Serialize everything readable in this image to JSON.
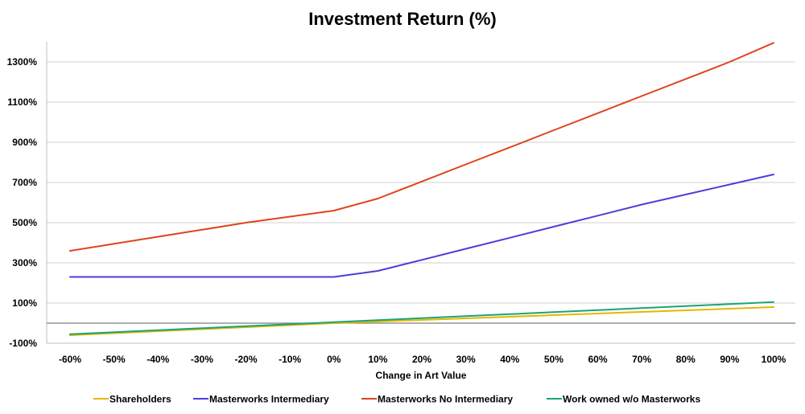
{
  "chart_data": {
    "type": "line",
    "title": "Investment Return (%)",
    "xlabel": "Change in Art Value",
    "ylabel": "",
    "x_tick_labels": [
      "-60%",
      "-50%",
      "-40%",
      "-30%",
      "-20%",
      "-10%",
      "0%",
      "10%",
      "20%",
      "30%",
      "40%",
      "50%",
      "60%",
      "70%",
      "80%",
      "90%",
      "100%"
    ],
    "x": [
      -60,
      -50,
      -40,
      -30,
      -20,
      -10,
      0,
      10,
      20,
      30,
      40,
      50,
      60,
      70,
      80,
      90,
      100
    ],
    "ylim": [
      -100,
      1400
    ],
    "y_tick_values": [
      -100,
      100,
      300,
      500,
      700,
      900,
      1100,
      1300
    ],
    "y_tick_labels": [
      "-100%",
      "100%",
      "300%",
      "500%",
      "700%",
      "900%",
      "1100%",
      "1300%"
    ],
    "grid": true,
    "legend_position": "bottom",
    "series": [
      {
        "name": "Shareholders",
        "color": "#E8B700",
        "values": [
          -60,
          -50,
          -40,
          -30,
          -20,
          -10,
          0,
          8,
          16,
          24,
          32,
          40,
          48,
          56,
          64,
          72,
          80
        ]
      },
      {
        "name": "Masterworks Intermediary",
        "color": "#4B3FD8",
        "values": [
          230,
          230,
          230,
          230,
          230,
          230,
          230,
          260,
          315,
          370,
          425,
          480,
          535,
          590,
          640,
          690,
          740
        ]
      },
      {
        "name": "Masterworks No Intermediary",
        "color": "#E0441A",
        "values": [
          360,
          395,
          430,
          465,
          500,
          530,
          560,
          620,
          705,
          790,
          875,
          960,
          1045,
          1130,
          1215,
          1300,
          1395
        ]
      },
      {
        "name": "Work owned w/o Masterworks",
        "color": "#1BA37A",
        "values": [
          -55,
          -45,
          -35,
          -25,
          -15,
          -5,
          5,
          15,
          25,
          35,
          45,
          55,
          65,
          75,
          85,
          95,
          105
        ]
      }
    ]
  }
}
